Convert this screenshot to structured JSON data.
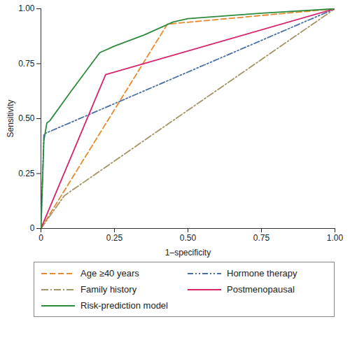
{
  "chart_data": {
    "type": "line",
    "xlabel": "1–specificity",
    "ylabel": "Sensitivity",
    "xlim": [
      0,
      1
    ],
    "ylim": [
      0,
      1
    ],
    "xticks": [
      0,
      0.25,
      {
        "value": 0.5,
        "label": "0.50"
      },
      0.75,
      {
        "value": 1,
        "label": "1.00"
      }
    ],
    "yticks": [
      0,
      0.25,
      {
        "value": 0.5,
        "label": "0.50"
      },
      0.75,
      {
        "value": 1,
        "label": "1.00"
      }
    ],
    "grid": false,
    "legend": "bottom",
    "series": [
      {
        "name": "Age ≥40 years",
        "color": "#e8892b",
        "line_style": "dashed",
        "x": [
          0,
          0.43,
          1
        ],
        "values": [
          0,
          0.93,
          1
        ]
      },
      {
        "name": "Hormone therapy",
        "color": "#4a6fa5",
        "line_style": "dashdotdot",
        "x": [
          0,
          0.01,
          1
        ],
        "values": [
          0,
          0.43,
          1
        ]
      },
      {
        "name": "Family history",
        "color": "#a39566",
        "line_style": "dashdot",
        "x": [
          0,
          0.08,
          1
        ],
        "values": [
          0,
          0.15,
          1
        ]
      },
      {
        "name": "Postmenopausal",
        "color": "#d6246e",
        "line_style": "solid",
        "x": [
          0,
          0.22,
          1
        ],
        "values": [
          0,
          0.7,
          1
        ]
      },
      {
        "name": "Risk-prediction model",
        "color": "#2e8b3e",
        "line_style": "solid",
        "x": [
          0,
          0.005,
          0.01,
          0.02,
          0.03,
          0.1,
          0.2,
          0.25,
          0.35,
          0.45,
          0.5,
          0.75,
          1
        ],
        "values": [
          0,
          0.2,
          0.4,
          0.48,
          0.49,
          0.62,
          0.8,
          0.83,
          0.88,
          0.94,
          0.955,
          0.98,
          1
        ]
      }
    ]
  }
}
